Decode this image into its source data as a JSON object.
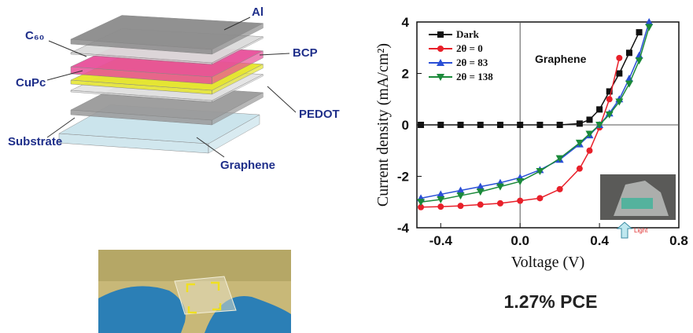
{
  "diagram": {
    "labels": [
      "Al",
      "BCP",
      "C₆₀",
      "CuPc",
      "PEDOT",
      "Substrate",
      "Graphene"
    ]
  },
  "caption": "1.27% PCE",
  "chart_data": {
    "type": "line",
    "x_label": "Voltage (V)",
    "y_label": "Current density (mA/cm²)",
    "annotation": "Graphene",
    "inset_label": "Light",
    "x": [
      -0.5,
      -0.4,
      -0.3,
      -0.2,
      -0.1,
      0,
      0.1,
      0.2,
      0.3,
      0.35,
      0.4,
      0.45,
      0.5,
      0.55,
      0.6,
      0.65
    ],
    "series": [
      {
        "name": "Dark",
        "color": "#111111",
        "marker": "square",
        "values": [
          0,
          0,
          0,
          0,
          0,
          0,
          0,
          0,
          0.05,
          0.2,
          0.6,
          1.3,
          2.0,
          2.8,
          3.6,
          null
        ]
      },
      {
        "name": "2θ = 0",
        "color": "#e8202a",
        "marker": "circle",
        "values": [
          -3.2,
          -3.18,
          -3.15,
          -3.1,
          -3.05,
          -2.95,
          -2.85,
          -2.5,
          -1.7,
          -1.0,
          -0.1,
          1.0,
          2.6,
          null,
          null,
          null
        ]
      },
      {
        "name": "2θ = 83",
        "color": "#2a4fd6",
        "marker": "triangle-up",
        "values": [
          -2.85,
          -2.7,
          -2.55,
          -2.4,
          -2.25,
          -2.05,
          -1.75,
          -1.35,
          -0.75,
          -0.4,
          0,
          0.45,
          1.0,
          1.8,
          2.7,
          4.0
        ]
      },
      {
        "name": "2θ = 138",
        "color": "#1b8a3a",
        "marker": "triangle-down",
        "values": [
          -3.0,
          -2.9,
          -2.75,
          -2.6,
          -2.4,
          -2.2,
          -1.8,
          -1.3,
          -0.7,
          -0.35,
          0,
          0.4,
          0.9,
          1.6,
          2.5,
          3.8
        ]
      }
    ],
    "xlim": [
      -0.52,
      0.8
    ],
    "ylim": [
      -4,
      4
    ],
    "xticks": [
      -0.4,
      {
        "value": 0,
        "label": "0.0"
      },
      0.4,
      0.8
    ],
    "yticks": [
      -4,
      -2,
      0,
      2,
      4
    ],
    "zero_lines": true,
    "legend": "top-left"
  }
}
